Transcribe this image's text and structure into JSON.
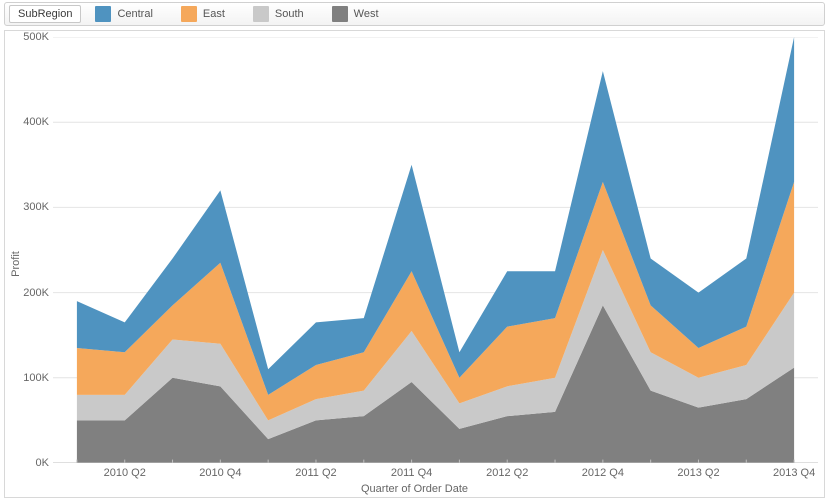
{
  "legend": {
    "title": "SubRegion",
    "items": [
      {
        "label": "Central",
        "color": "#4f93c0"
      },
      {
        "label": "East",
        "color": "#f5a85b"
      },
      {
        "label": "South",
        "color": "#c9c9c9"
      },
      {
        "label": "West",
        "color": "#808080"
      }
    ]
  },
  "chart": {
    "type": "area-stacked",
    "xlabel": "Quarter of Order Date",
    "ylabel": "Profit",
    "background_color": "#ffffff",
    "grid_color": "#e4e4e4",
    "axis_color": "#bfbfbf",
    "label_color": "#666666",
    "label_fontsize": 11,
    "ylim": [
      0,
      500000
    ],
    "ytick_step": 100000,
    "ytick_labels": [
      "0K",
      "100K",
      "200K",
      "300K",
      "400K",
      "500K"
    ],
    "categories": [
      "2010 Q1",
      "2010 Q2",
      "2010 Q3",
      "2010 Q4",
      "2011 Q1",
      "2011 Q2",
      "2011 Q3",
      "2011 Q4",
      "2012 Q1",
      "2012 Q2",
      "2012 Q3",
      "2012 Q4",
      "2013 Q1",
      "2013 Q2",
      "2013 Q3",
      "2013 Q4"
    ],
    "xtick_show": [
      false,
      true,
      false,
      true,
      false,
      true,
      false,
      true,
      false,
      true,
      false,
      true,
      false,
      true,
      false,
      true
    ],
    "series": [
      {
        "name": "West",
        "color": "#808080",
        "values": [
          50000,
          50000,
          100000,
          90000,
          28000,
          50000,
          55000,
          95000,
          40000,
          55000,
          60000,
          185000,
          85000,
          65000,
          75000,
          112000
        ]
      },
      {
        "name": "South",
        "color": "#c9c9c9",
        "values": [
          30000,
          30000,
          45000,
          50000,
          22000,
          25000,
          30000,
          60000,
          30000,
          35000,
          40000,
          65000,
          45000,
          35000,
          40000,
          88000
        ]
      },
      {
        "name": "East",
        "color": "#f5a85b",
        "values": [
          55000,
          50000,
          40000,
          95000,
          30000,
          40000,
          45000,
          70000,
          30000,
          70000,
          70000,
          80000,
          55000,
          35000,
          45000,
          130000
        ]
      },
      {
        "name": "Central",
        "color": "#4f93c0",
        "values": [
          55000,
          35000,
          55000,
          85000,
          30000,
          50000,
          40000,
          125000,
          30000,
          65000,
          55000,
          130000,
          55000,
          65000,
          80000,
          170000
        ]
      }
    ]
  }
}
